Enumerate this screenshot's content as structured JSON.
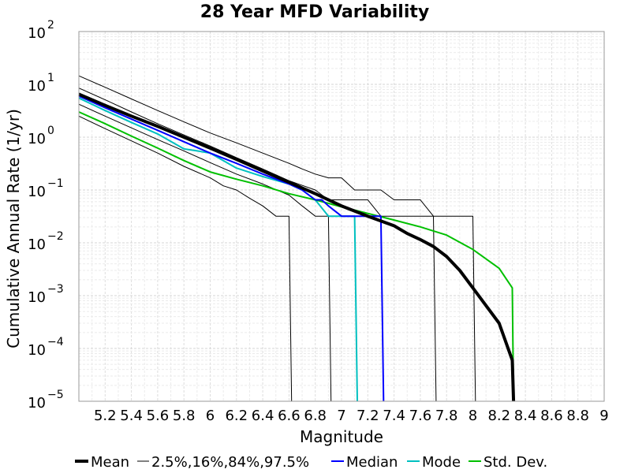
{
  "chart_data": {
    "type": "line",
    "title": "28 Year MFD Variability",
    "xlabel": "Magnitude",
    "ylabel": "Cumulative Annual Rate (1/yr)",
    "xlim": [
      5.0,
      9.0
    ],
    "ylim": [
      1e-05,
      100
    ],
    "yscale": "log",
    "grid": true,
    "legend_placement": "bottom",
    "x_ticks": [
      5.2,
      5.4,
      5.6,
      5.8,
      6.0,
      6.2,
      6.4,
      6.6,
      6.8,
      7.0,
      7.2,
      7.4,
      7.6,
      7.8,
      8.0,
      8.2,
      8.4,
      8.6,
      8.8,
      9.0
    ],
    "x_tick_labels": [
      "5.2",
      "5.4",
      "5.6",
      "5.8",
      "6",
      "6.2",
      "6.4",
      "6.6",
      "6.8",
      "7",
      "7.2",
      "7.4",
      "7.6",
      "7.8",
      "8",
      "8.2",
      "8.4",
      "8.6",
      "8.8",
      "9"
    ],
    "y_tick_exponents": [
      2,
      1,
      0,
      -1,
      -2,
      -3,
      -4,
      -5
    ],
    "y_tick_base": "10",
    "series": [
      {
        "name": "Mean",
        "color": "#000000",
        "width": 4,
        "x": [
          5.0,
          5.2,
          5.4,
          5.6,
          5.8,
          6.0,
          6.2,
          6.4,
          6.6,
          6.8,
          7.0,
          7.2,
          7.4,
          7.5,
          7.6,
          7.7,
          7.8,
          7.9,
          8.0,
          8.2,
          8.3,
          8.31
        ],
        "y": [
          6.5,
          4.0,
          2.5,
          1.6,
          1.0,
          0.62,
          0.38,
          0.23,
          0.14,
          0.085,
          0.05,
          0.032,
          0.021,
          0.015,
          0.0115,
          0.0085,
          0.0055,
          0.003,
          0.0014,
          0.0003,
          6e-05,
          1e-05
        ]
      },
      {
        "name": "2.5%,16%,84%,97.5%",
        "color": "#000000",
        "width": 1,
        "lines": [
          {
            "x": [
              5.0,
              5.2,
              5.4,
              5.6,
              5.8,
              6.0,
              6.2,
              6.4,
              6.5,
              6.6,
              6.7,
              6.8,
              6.9,
              7.0,
              7.1,
              7.2,
              7.3,
              7.4,
              7.5,
              7.6,
              7.7,
              8.0,
              8.02
            ],
            "y": [
              14.5,
              8.8,
              5.3,
              3.2,
              1.95,
              1.2,
              0.78,
              0.5,
              0.4,
              0.32,
              0.25,
              0.2,
              0.17,
              0.17,
              0.1,
              0.1,
              0.1,
              0.065,
              0.065,
              0.065,
              0.032,
              0.032,
              1e-05
            ]
          },
          {
            "x": [
              5.0,
              5.2,
              5.4,
              5.6,
              5.8,
              6.0,
              6.2,
              6.4,
              6.6,
              6.8,
              6.9,
              7.0,
              7.1,
              7.2,
              7.3,
              7.4,
              7.5,
              7.6,
              7.7,
              7.72
            ],
            "y": [
              8.5,
              5.1,
              3.0,
              1.8,
              1.1,
              0.68,
              0.41,
              0.25,
              0.15,
              0.1,
              0.065,
              0.065,
              0.065,
              0.065,
              0.032,
              0.032,
              0.032,
              0.032,
              0.032,
              1e-05
            ]
          },
          {
            "x": [
              5.0,
              5.2,
              5.4,
              5.6,
              5.8,
              6.0,
              6.2,
              6.4,
              6.6,
              6.7,
              6.8,
              6.9,
              6.92
            ],
            "y": [
              4.2,
              2.5,
              1.5,
              0.9,
              0.55,
              0.33,
              0.2,
              0.13,
              0.08,
              0.05,
              0.032,
              0.032,
              1e-05
            ]
          },
          {
            "x": [
              5.0,
              5.2,
              5.4,
              5.6,
              5.8,
              6.0,
              6.1,
              6.2,
              6.3,
              6.4,
              6.5,
              6.6,
              6.62
            ],
            "y": [
              2.5,
              1.45,
              0.85,
              0.5,
              0.28,
              0.17,
              0.12,
              0.1,
              0.07,
              0.05,
              0.032,
              0.032,
              1e-05
            ]
          }
        ]
      },
      {
        "name": "Median",
        "color": "#0000ff",
        "width": 2,
        "x": [
          5.0,
          5.2,
          5.4,
          5.6,
          5.8,
          6.0,
          6.2,
          6.4,
          6.6,
          6.7,
          6.8,
          6.85,
          6.9,
          7.0,
          7.1,
          7.2,
          7.3,
          7.32
        ],
        "y": [
          6.0,
          3.6,
          2.2,
          1.35,
          0.82,
          0.5,
          0.32,
          0.2,
          0.13,
          0.1,
          0.065,
          0.065,
          0.05,
          0.032,
          0.032,
          0.032,
          0.032,
          1e-05
        ]
      },
      {
        "name": "Mode",
        "color": "#00c0c0",
        "width": 2,
        "x": [
          5.0,
          5.2,
          5.4,
          5.6,
          5.8,
          5.9,
          6.0,
          6.2,
          6.4,
          6.6,
          6.7,
          6.8,
          6.9,
          7.0,
          7.1,
          7.12
        ],
        "y": [
          5.5,
          3.2,
          1.9,
          1.15,
          0.6,
          0.55,
          0.5,
          0.26,
          0.18,
          0.13,
          0.1,
          0.065,
          0.032,
          0.032,
          0.032,
          1e-05
        ]
      },
      {
        "name": "Std. Dev.",
        "color": "#00c000",
        "width": 2,
        "x": [
          5.0,
          5.2,
          5.4,
          5.6,
          5.8,
          6.0,
          6.2,
          6.4,
          6.6,
          6.8,
          7.0,
          7.2,
          7.4,
          7.6,
          7.8,
          8.0,
          8.2,
          8.3,
          8.31
        ],
        "y": [
          3.0,
          1.8,
          1.05,
          0.62,
          0.36,
          0.22,
          0.16,
          0.12,
          0.085,
          0.065,
          0.048,
          0.036,
          0.027,
          0.02,
          0.014,
          0.0075,
          0.0033,
          0.0014,
          1e-05
        ]
      }
    ]
  }
}
